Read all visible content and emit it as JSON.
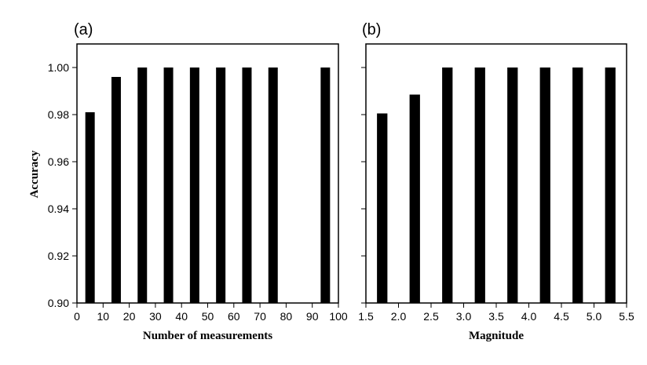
{
  "chart_data": [
    {
      "type": "bar",
      "panel_label": "(a)",
      "xlabel": "Number of measurements",
      "ylabel": "Accuracy",
      "xlim": [
        0,
        100
      ],
      "ylim": [
        0.9,
        1.01
      ],
      "x_ticks": [
        "0",
        "10",
        "20",
        "30",
        "40",
        "50",
        "60",
        "70",
        "80",
        "90",
        "100"
      ],
      "y_ticks": [
        "0.90",
        "0.92",
        "0.94",
        "0.96",
        "0.98",
        "1.00"
      ],
      "x": [
        5,
        15,
        25,
        35,
        45,
        55,
        65,
        75,
        95
      ],
      "values": [
        0.981,
        0.996,
        1.0,
        1.0,
        1.0,
        1.0,
        1.0,
        1.0,
        1.0
      ],
      "bar_width": 3.6,
      "grid": false,
      "color": "#000000"
    },
    {
      "type": "bar",
      "panel_label": "(b)",
      "xlabel": "Magnitude",
      "ylabel": "",
      "xlim": [
        1.5,
        5.5
      ],
      "ylim": [
        0.9,
        1.01
      ],
      "x_ticks": [
        "1.5",
        "2.0",
        "2.5",
        "3.0",
        "3.5",
        "4.0",
        "4.5",
        "5.0",
        "5.5"
      ],
      "y_ticks": [
        "0.90",
        "0.92",
        "0.94",
        "0.96",
        "0.98",
        "1.00"
      ],
      "x": [
        1.75,
        2.25,
        2.75,
        3.25,
        3.75,
        4.25,
        4.75,
        5.25
      ],
      "values": [
        0.9805,
        0.9885,
        1.0,
        1.0,
        1.0,
        1.0,
        1.0,
        1.0
      ],
      "bar_width": 0.16,
      "grid": false,
      "color": "#000000"
    }
  ]
}
